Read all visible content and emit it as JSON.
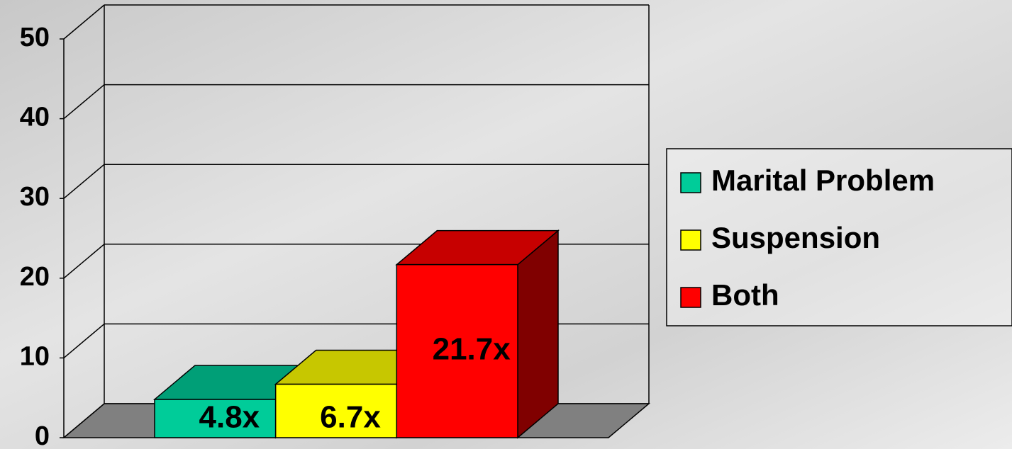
{
  "chart_data": {
    "type": "bar",
    "categories": [
      null
    ],
    "series": [
      {
        "name": "Marital Problem",
        "color": "#00cc99",
        "values": [
          4.8
        ],
        "value_labels": [
          "4.8x"
        ]
      },
      {
        "name": "Suspension",
        "color": "#ffff00",
        "values": [
          6.7
        ],
        "value_labels": [
          "6.7x"
        ]
      },
      {
        "name": "Both",
        "color": "#ff0000",
        "values": [
          21.7
        ],
        "value_labels": [
          "21.7x"
        ]
      }
    ],
    "ylim": [
      0,
      50
    ],
    "yticks": [
      0,
      10,
      20,
      30,
      40,
      50
    ],
    "grid": true,
    "legend": "right"
  }
}
